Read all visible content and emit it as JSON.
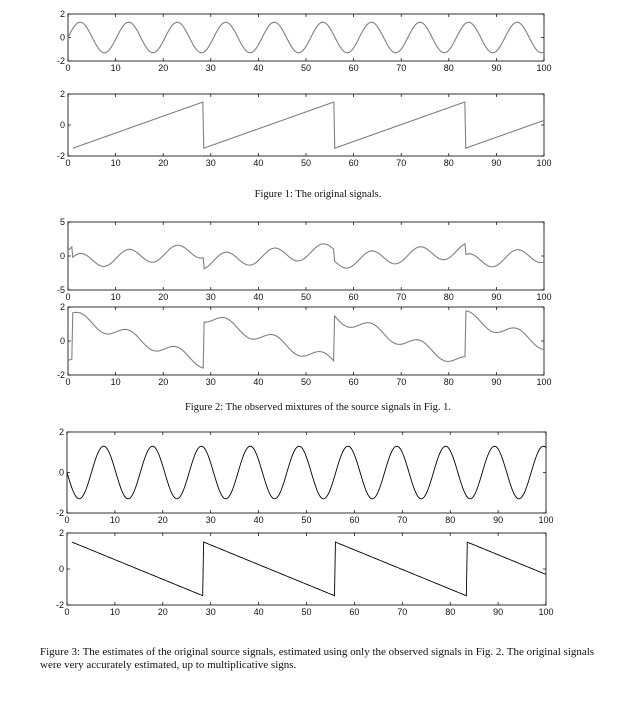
{
  "captions": {
    "fig1": "Figure 1: The original signals.",
    "fig2": "Figure 2: The observed mixtures of the source signals in Fig. 1.",
    "fig3": "Figure 3: The estimates of the original source signals, estimated using only the observed signals in Fig. 2. The original signals were very accurately estimated, up to multiplicative signs."
  },
  "chart_data": [
    {
      "type": "line",
      "title": "Figure 1: The original signals.",
      "subplots": [
        {
          "xlim": [
            0,
            100
          ],
          "ylim": [
            -2,
            2
          ],
          "xticks": [
            0,
            10,
            20,
            30,
            40,
            50,
            60,
            70,
            80,
            90,
            100
          ],
          "yticks": [
            -2,
            0,
            2
          ],
          "color": "#808080",
          "series": [
            {
              "kind": "sine",
              "period": 10.2,
              "amplitude": 1.3,
              "x": [
                0,
                2.55,
                5.1,
                7.65,
                10.2,
                12.75,
                15.3,
                17.85,
                20.4,
                22.95,
                25.5,
                28.05,
                30.6,
                33.15,
                35.7,
                38.25,
                40.8,
                43.35,
                45.9,
                48.45,
                51,
                53.55,
                56.1,
                58.65,
                61.2,
                63.75,
                66.3,
                68.85,
                71.4,
                73.95,
                76.5,
                79.05,
                81.6,
                84.15,
                86.7,
                89.25,
                91.8,
                94.35,
                96.9,
                99.45
              ],
              "y": [
                0,
                1.3,
                0,
                -1.3,
                0,
                1.3,
                0,
                -1.3,
                0,
                1.3,
                0,
                -1.3,
                0,
                1.3,
                0,
                -1.3,
                0,
                1.3,
                0,
                -1.3,
                0,
                1.3,
                0,
                -1.3,
                0,
                1.3,
                0,
                -1.3,
                0,
                1.3,
                0,
                -1.3,
                0,
                1.3,
                0,
                -1.3,
                0,
                1.3,
                0,
                -1.3
              ]
            }
          ]
        },
        {
          "xlim": [
            0,
            100
          ],
          "ylim": [
            -2,
            2
          ],
          "xticks": [
            0,
            10,
            20,
            30,
            40,
            50,
            60,
            70,
            80,
            90,
            100
          ],
          "yticks": [
            -2,
            0,
            2
          ],
          "color": "#808080",
          "series": [
            {
              "kind": "polyline",
              "x": [
                1,
                27,
                27.1,
                54.5,
                54.6,
                82,
                82.1,
                100
              ],
              "y": [
                -1.5,
                1.5,
                -1.5,
                1.5,
                -1.5,
                1.5,
                -1.5,
                0.5
              ]
            }
          ]
        }
      ]
    },
    {
      "type": "line",
      "title": "Figure 2: The observed mixtures of the source signals in Fig. 1.",
      "subplots": [
        {
          "xlim": [
            0,
            100
          ],
          "ylim": [
            -5,
            5
          ],
          "xticks": [
            0,
            10,
            20,
            30,
            40,
            50,
            60,
            70,
            80,
            90,
            100
          ],
          "yticks": [
            -5,
            0,
            5
          ],
          "color": "#808080",
          "series": [
            {
              "kind": "mixture",
              "sine_weight": 1.0,
              "saw_weight": 0.55,
              "x": [
                0,
                27,
                54.5,
                82,
                100
              ],
              "y": [
                1.4,
                2.1,
                1.9,
                1.6,
                -0.4
              ]
            }
          ]
        },
        {
          "xlim": [
            0,
            100
          ],
          "ylim": [
            -2,
            2
          ],
          "xticks": [
            0,
            10,
            20,
            30,
            40,
            50,
            60,
            70,
            80,
            90,
            100
          ],
          "yticks": [
            -2,
            0,
            2
          ],
          "color": "#808080",
          "series": [
            {
              "kind": "mixture",
              "sine_weight": 0.35,
              "saw_weight": 1.0,
              "x": [
                1,
                26.5,
                27.5,
                54.5,
                55,
                81.5,
                82.5,
                100
              ],
              "y": [
                1.2,
                -1.4,
                1.5,
                -1.2,
                1.5,
                -1.1,
                1.4,
                -0.4
              ]
            }
          ]
        }
      ]
    },
    {
      "type": "line",
      "title": "Figure 3: The estimates of the original source signals, estimated using only the observed signals in Fig. 2. The original signals were very accurately estimated, up to multiplicative signs.",
      "subplots": [
        {
          "xlim": [
            0,
            100
          ],
          "ylim": [
            -2,
            2
          ],
          "xticks": [
            0,
            10,
            20,
            30,
            40,
            50,
            60,
            70,
            80,
            90,
            100
          ],
          "yticks": [
            -2,
            0,
            2
          ],
          "color": "#000000",
          "series": [
            {
              "kind": "sine",
              "period": 10.2,
              "amplitude": 1.3,
              "x": [
                0,
                2.55,
                5.1,
                7.65,
                10.2,
                12.75,
                15.3,
                17.85,
                20.4,
                22.95,
                25.5,
                28.05,
                30.6,
                33.15,
                35.7,
                38.25,
                40.8,
                43.35,
                45.9,
                48.45,
                51,
                53.55,
                56.1,
                58.65,
                61.2,
                63.75,
                66.3,
                68.85,
                71.4,
                73.95,
                76.5,
                79.05,
                81.6,
                84.15,
                86.7,
                89.25,
                91.8,
                94.35,
                96.9,
                99.45
              ],
              "y": [
                0,
                -1.3,
                0,
                1.3,
                0,
                -1.3,
                0,
                1.3,
                0,
                -1.3,
                0,
                1.3,
                0,
                -1.3,
                0,
                1.3,
                0,
                -1.3,
                0,
                1.3,
                0,
                -1.3,
                0,
                1.3,
                0,
                -1.3,
                0,
                1.3,
                0,
                -1.3,
                0,
                1.3,
                0,
                -1.3,
                0,
                1.3,
                0,
                -1.3,
                0,
                1.3
              ]
            }
          ]
        },
        {
          "xlim": [
            0,
            100
          ],
          "ylim": [
            -2,
            2
          ],
          "xticks": [
            0,
            10,
            20,
            30,
            40,
            50,
            60,
            70,
            80,
            90,
            100
          ],
          "yticks": [
            -2,
            0,
            2
          ],
          "color": "#000000",
          "series": [
            {
              "kind": "polyline",
              "x": [
                1,
                27,
                27.1,
                54.5,
                54.6,
                82,
                82.1,
                100
              ],
              "y": [
                1.5,
                -1.5,
                1.5,
                -1.5,
                1.5,
                -1.5,
                1.5,
                -0.6
              ]
            }
          ]
        }
      ]
    }
  ]
}
